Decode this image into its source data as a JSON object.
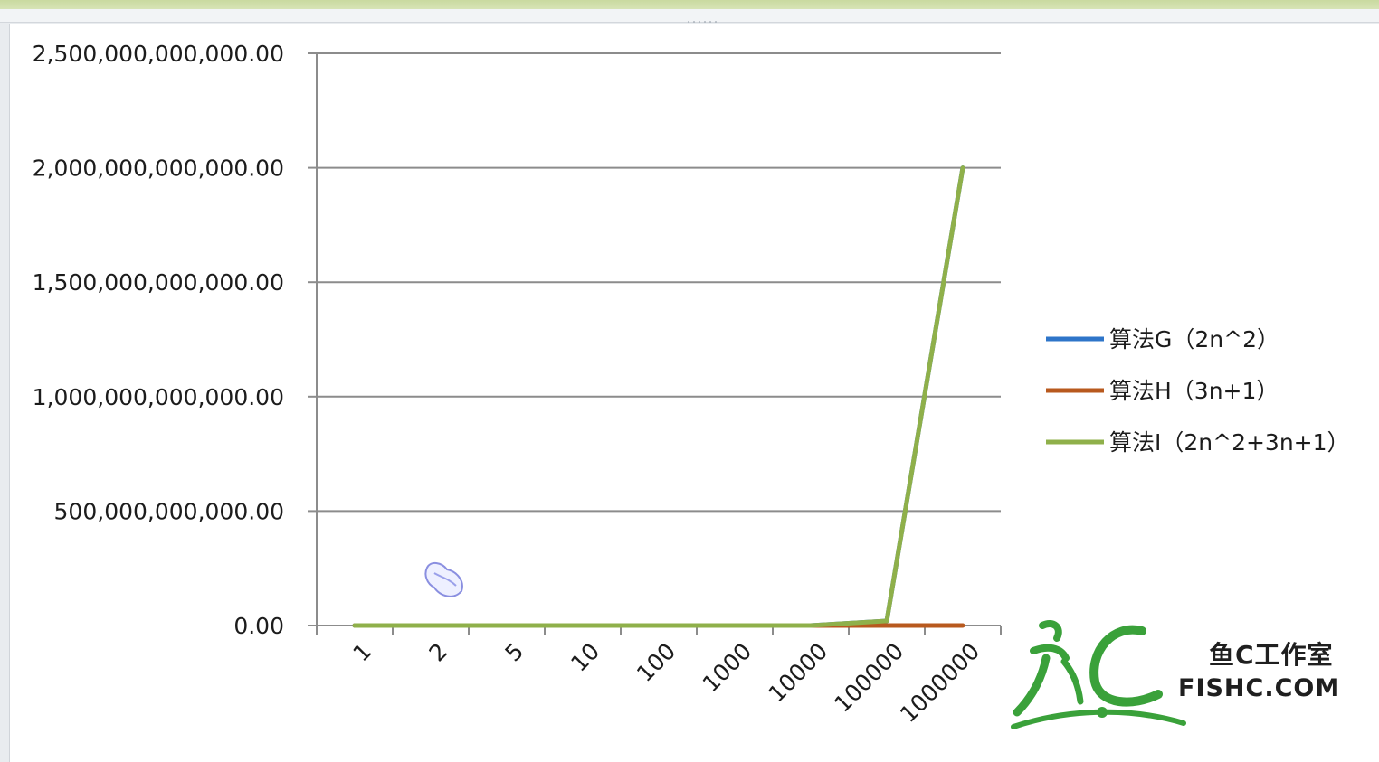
{
  "chart_data": {
    "type": "line",
    "categories": [
      "1",
      "2",
      "5",
      "10",
      "100",
      "1000",
      "10000",
      "100000",
      "1000000"
    ],
    "series": [
      {
        "name": "算法G（2n^2）",
        "color": "#2e75c9",
        "values": [
          2,
          8,
          50,
          200,
          20000,
          2000000,
          200000000,
          20000000000,
          2000000000000
        ]
      },
      {
        "name": "算法H（3n+1）",
        "color": "#b8591e",
        "values": [
          4,
          7,
          16,
          31,
          301,
          3001,
          30001,
          300001,
          3000001
        ]
      },
      {
        "name": "算法I（2n^2+3n+1）",
        "color": "#8fb04a",
        "values": [
          6,
          15,
          66,
          231,
          20301,
          2003001,
          200030001,
          20000300001,
          2000003000001
        ]
      }
    ],
    "y_ticks": [
      "0.00",
      "500,000,000,000.00",
      "1,000,000,000,000.00",
      "1,500,000,000,000.00",
      "2,000,000,000,000.00",
      "2,500,000,000,000.00"
    ],
    "ylim": [
      0,
      2500000000000
    ],
    "grid": true,
    "legend_position": "right"
  },
  "watermark": {
    "logo_text": "鱼C",
    "studio": "鱼C工作室",
    "site": "FISHC.COM"
  },
  "colors": {
    "grid": "#8c8c8c",
    "axis": "#8c8c8c",
    "watermark_green": "#3aa13a"
  }
}
